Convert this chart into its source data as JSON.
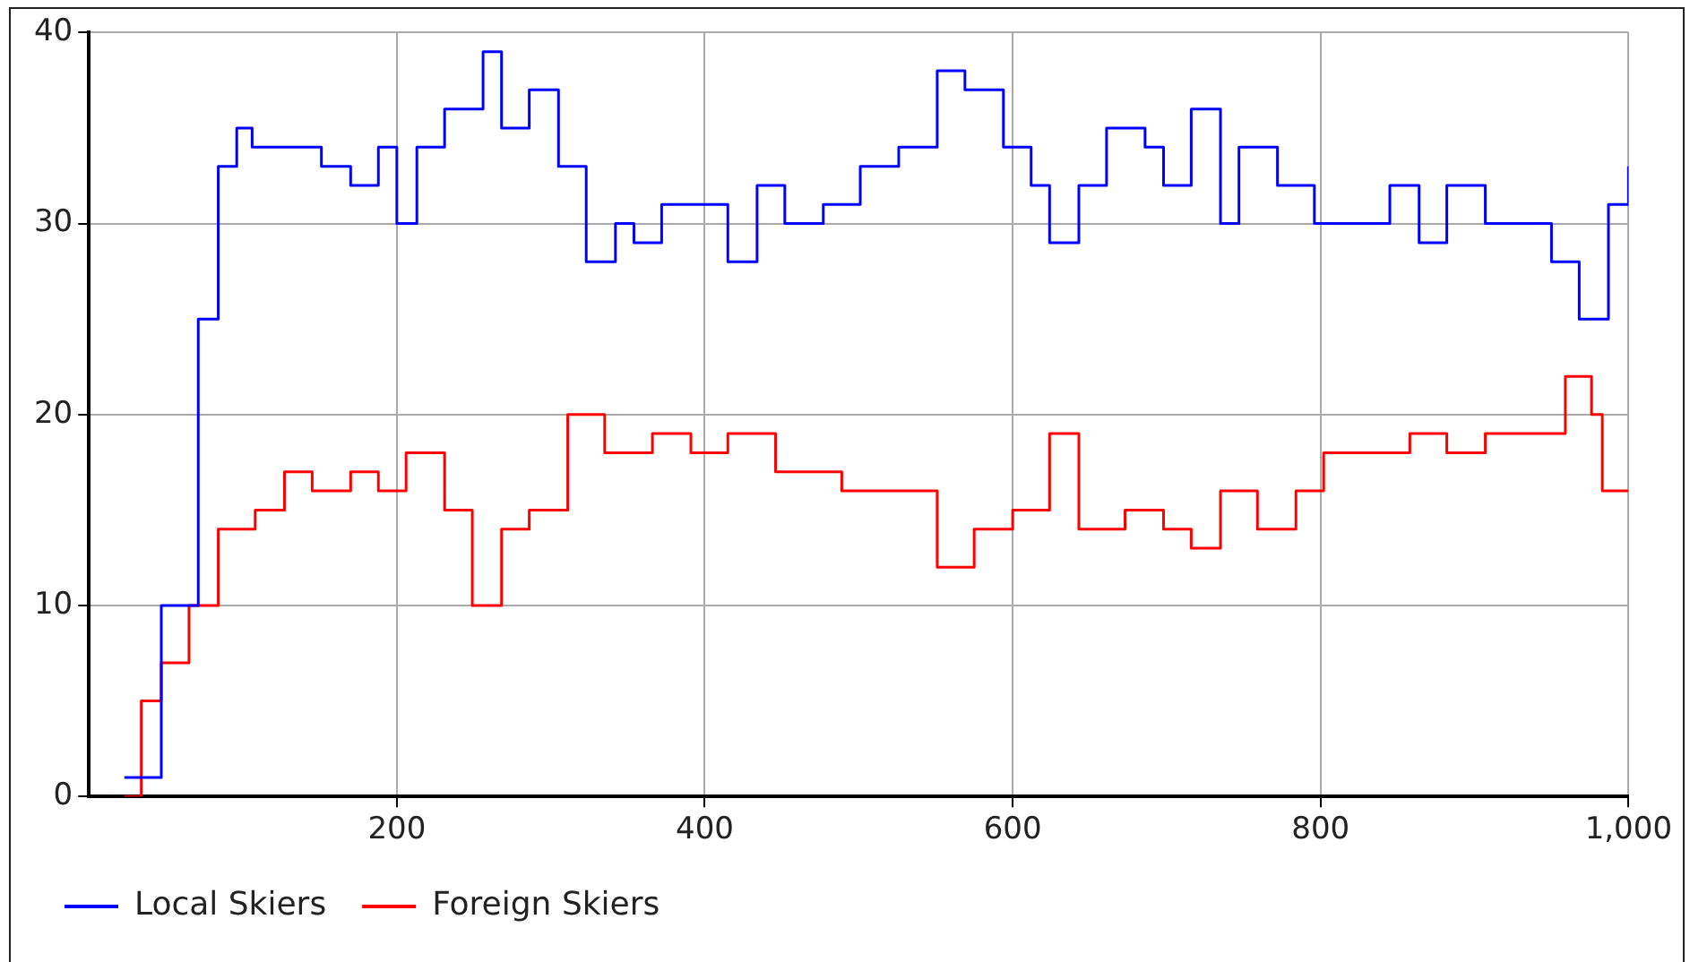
{
  "chart_data": {
    "type": "step",
    "xlim": [
      0,
      1000
    ],
    "ylim": [
      0,
      40
    ],
    "xticks": [
      200,
      400,
      600,
      800,
      {
        "value": 1000,
        "label": "1,000"
      }
    ],
    "yticks": [
      0,
      10,
      20,
      30,
      40
    ],
    "grid": true,
    "legend": "bottom left",
    "series": [
      {
        "name": "Local Skiers",
        "color": "#0000ff",
        "x": [
          23,
          47,
          71,
          84,
          96,
          106,
          133,
          151,
          170,
          188,
          200,
          213,
          231,
          256,
          268,
          286,
          305,
          323,
          342,
          354,
          372,
          391,
          415,
          434,
          452,
          477,
          501,
          526,
          551,
          569,
          594,
          612,
          624,
          643,
          661,
          686,
          698,
          716,
          735,
          747,
          772,
          796,
          821,
          845,
          864,
          882,
          907,
          931,
          950,
          968,
          987,
          1000
        ],
        "values": [
          1,
          10,
          25,
          33,
          35,
          34,
          34,
          33,
          32,
          34,
          30,
          34,
          36,
          39,
          35,
          37,
          33,
          28,
          30,
          29,
          31,
          31,
          28,
          32,
          30,
          31,
          33,
          34,
          38,
          37,
          34,
          32,
          29,
          32,
          35,
          34,
          32,
          36,
          30,
          34,
          32,
          30,
          30,
          32,
          29,
          32,
          30,
          30,
          28,
          25,
          31,
          33
        ]
      },
      {
        "name": "Foreign Skiers",
        "color": "#ff0000",
        "x": [
          23,
          34,
          47,
          65,
          84,
          108,
          127,
          145,
          170,
          188,
          206,
          231,
          249,
          268,
          286,
          311,
          335,
          366,
          391,
          415,
          446,
          471,
          489,
          526,
          551,
          575,
          600,
          624,
          643,
          673,
          698,
          716,
          735,
          759,
          784,
          802,
          827,
          858,
          882,
          907,
          931,
          959,
          976,
          983,
          1000
        ],
        "values": [
          0,
          5,
          7,
          10,
          14,
          15,
          17,
          16,
          17,
          16,
          18,
          15,
          10,
          14,
          15,
          20,
          18,
          19,
          18,
          19,
          17,
          17,
          16,
          16,
          12,
          14,
          15,
          19,
          14,
          15,
          14,
          13,
          16,
          14,
          16,
          18,
          18,
          19,
          18,
          19,
          19,
          22,
          20,
          16,
          16
        ]
      }
    ]
  }
}
